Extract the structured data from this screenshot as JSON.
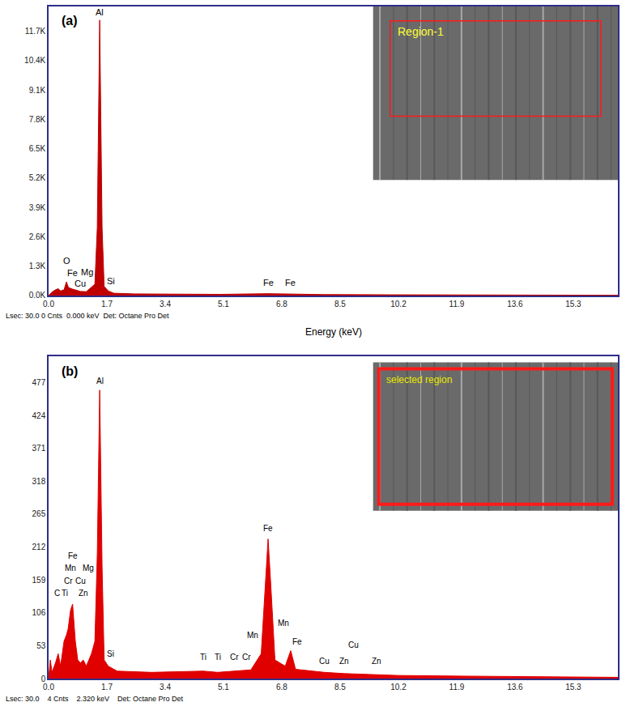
{
  "chart_data": [
    {
      "type": "area",
      "title": "(a)",
      "color": "#c00000",
      "grid": false,
      "x": [
        0,
        0.1,
        0.2,
        0.28,
        0.35,
        0.45,
        0.52,
        0.58,
        0.7,
        0.85,
        0.93,
        1.1,
        1.25,
        1.35,
        1.42,
        1.49,
        1.56,
        1.62,
        1.74,
        1.9,
        2.5,
        3.4,
        5.0,
        6.4,
        7.06,
        8.0,
        10.0,
        12.0,
        14.0,
        16.6
      ],
      "values": [
        0,
        150,
        250,
        300,
        200,
        250,
        600,
        350,
        280,
        200,
        180,
        170,
        350,
        500,
        3000,
        12200,
        3000,
        400,
        200,
        100,
        70,
        60,
        50,
        80,
        55,
        40,
        30,
        20,
        15,
        10
      ],
      "xlim": [
        0,
        16.6
      ],
      "xticks": [
        {
          "value": 0,
          "label": "0.0"
        },
        1.7,
        3.4,
        5.1,
        6.8,
        8.5,
        10.2,
        11.9,
        13.6,
        15.3
      ],
      "ylim": [
        0,
        12800
      ],
      "yticks": [
        {
          "value": 0,
          "label": "0.0K"
        },
        {
          "value": 1300,
          "label": "1.3K"
        },
        {
          "value": 2600,
          "label": "2.6K"
        },
        {
          "value": 3900,
          "label": "3.9K"
        },
        {
          "value": 5200,
          "label": "5.2K"
        },
        {
          "value": 6500,
          "label": "6.5K"
        },
        {
          "value": 7800,
          "label": "7.8K"
        },
        {
          "value": 9100,
          "label": "9.1K"
        },
        {
          "value": 10400,
          "label": "10.4K"
        },
        {
          "value": 11700,
          "label": "11.7K"
        }
      ],
      "annotations": [
        {
          "text": "Al",
          "x": 1.49,
          "y": 12250
        },
        {
          "text": "O",
          "x": 0.52,
          "y": 1250
        },
        {
          "text": "Fe",
          "x": 0.7,
          "y": 700
        },
        {
          "text": "Cu",
          "x": 0.93,
          "y": 230
        },
        {
          "text": "Mg",
          "x": 1.12,
          "y": 750
        },
        {
          "text": "Si",
          "x": 1.82,
          "y": 350
        },
        {
          "text": "Fe",
          "x": 6.4,
          "y": 300
        },
        {
          "text": "Fe",
          "x": 7.06,
          "y": 300
        }
      ],
      "inset_label": "Region-1",
      "footer": "Lsec: 30.0 0 Cnts  0.000 keV  Det: Octane Pro Det",
      "x_label": "Energy (keV)"
    },
    {
      "type": "area",
      "title": "(b)",
      "color": "#e00000",
      "grid": false,
      "x": [
        0,
        0.05,
        0.1,
        0.2,
        0.28,
        0.35,
        0.45,
        0.52,
        0.57,
        0.64,
        0.7,
        0.78,
        0.85,
        0.93,
        1.01,
        1.1,
        1.25,
        1.35,
        1.42,
        1.49,
        1.56,
        1.62,
        1.74,
        2.0,
        3.0,
        4.51,
        4.93,
        5.41,
        5.9,
        6.2,
        6.32,
        6.4,
        6.48,
        6.6,
        6.9,
        7.06,
        7.2,
        8.04,
        8.63,
        9.57,
        10.2,
        12.0,
        14.0,
        16.6
      ],
      "values": [
        0,
        30,
        10,
        25,
        40,
        20,
        60,
        70,
        80,
        110,
        120,
        60,
        30,
        25,
        30,
        20,
        40,
        60,
        200,
        465,
        180,
        30,
        20,
        12,
        10,
        12,
        10,
        12,
        14,
        40,
        150,
        225,
        150,
        30,
        20,
        45,
        15,
        10,
        8,
        6,
        5,
        4,
        3,
        2
      ],
      "xlim": [
        0,
        16.6
      ],
      "xticks": [
        {
          "value": 0,
          "label": "0.0"
        },
        1.7,
        3.4,
        5.1,
        6.8,
        8.5,
        10.2,
        11.9,
        13.6,
        15.3
      ],
      "ylim": [
        0,
        520
      ],
      "yticks": [
        0,
        53,
        106,
        159,
        212,
        265,
        318,
        371,
        424,
        477
      ],
      "annotations": [
        {
          "text": "Al",
          "x": 1.49,
          "y": 470
        },
        {
          "text": "Fe",
          "x": 0.7,
          "y": 188
        },
        {
          "text": "Mn",
          "x": 0.64,
          "y": 168
        },
        {
          "text": "Cr",
          "x": 0.57,
          "y": 148
        },
        {
          "text": "C",
          "x": 0.25,
          "y": 128
        },
        {
          "text": "Ti",
          "x": 0.48,
          "y": 128
        },
        {
          "text": "Zn",
          "x": 1.01,
          "y": 128
        },
        {
          "text": "Cu",
          "x": 0.93,
          "y": 148
        },
        {
          "text": "Mg",
          "x": 1.15,
          "y": 168
        },
        {
          "text": "Si",
          "x": 1.8,
          "y": 30
        },
        {
          "text": "Ti",
          "x": 4.51,
          "y": 25
        },
        {
          "text": "Ti",
          "x": 4.93,
          "y": 25
        },
        {
          "text": "Cr",
          "x": 5.41,
          "y": 25
        },
        {
          "text": "Cr",
          "x": 5.78,
          "y": 25
        },
        {
          "text": "Mn",
          "x": 5.95,
          "y": 60
        },
        {
          "text": "Mn",
          "x": 6.85,
          "y": 80
        },
        {
          "text": "Fe",
          "x": 6.4,
          "y": 232
        },
        {
          "text": "Fe",
          "x": 7.25,
          "y": 50
        },
        {
          "text": "Cu",
          "x": 8.04,
          "y": 18
        },
        {
          "text": "Zn",
          "x": 8.63,
          "y": 18
        },
        {
          "text": "Cu",
          "x": 8.9,
          "y": 45
        },
        {
          "text": "Zn",
          "x": 9.57,
          "y": 18
        }
      ],
      "inset_label": "selected region",
      "footer": "Lsec: 30.0    4 Cnts    2.320 keV    Det: Octane Pro Det"
    }
  ]
}
